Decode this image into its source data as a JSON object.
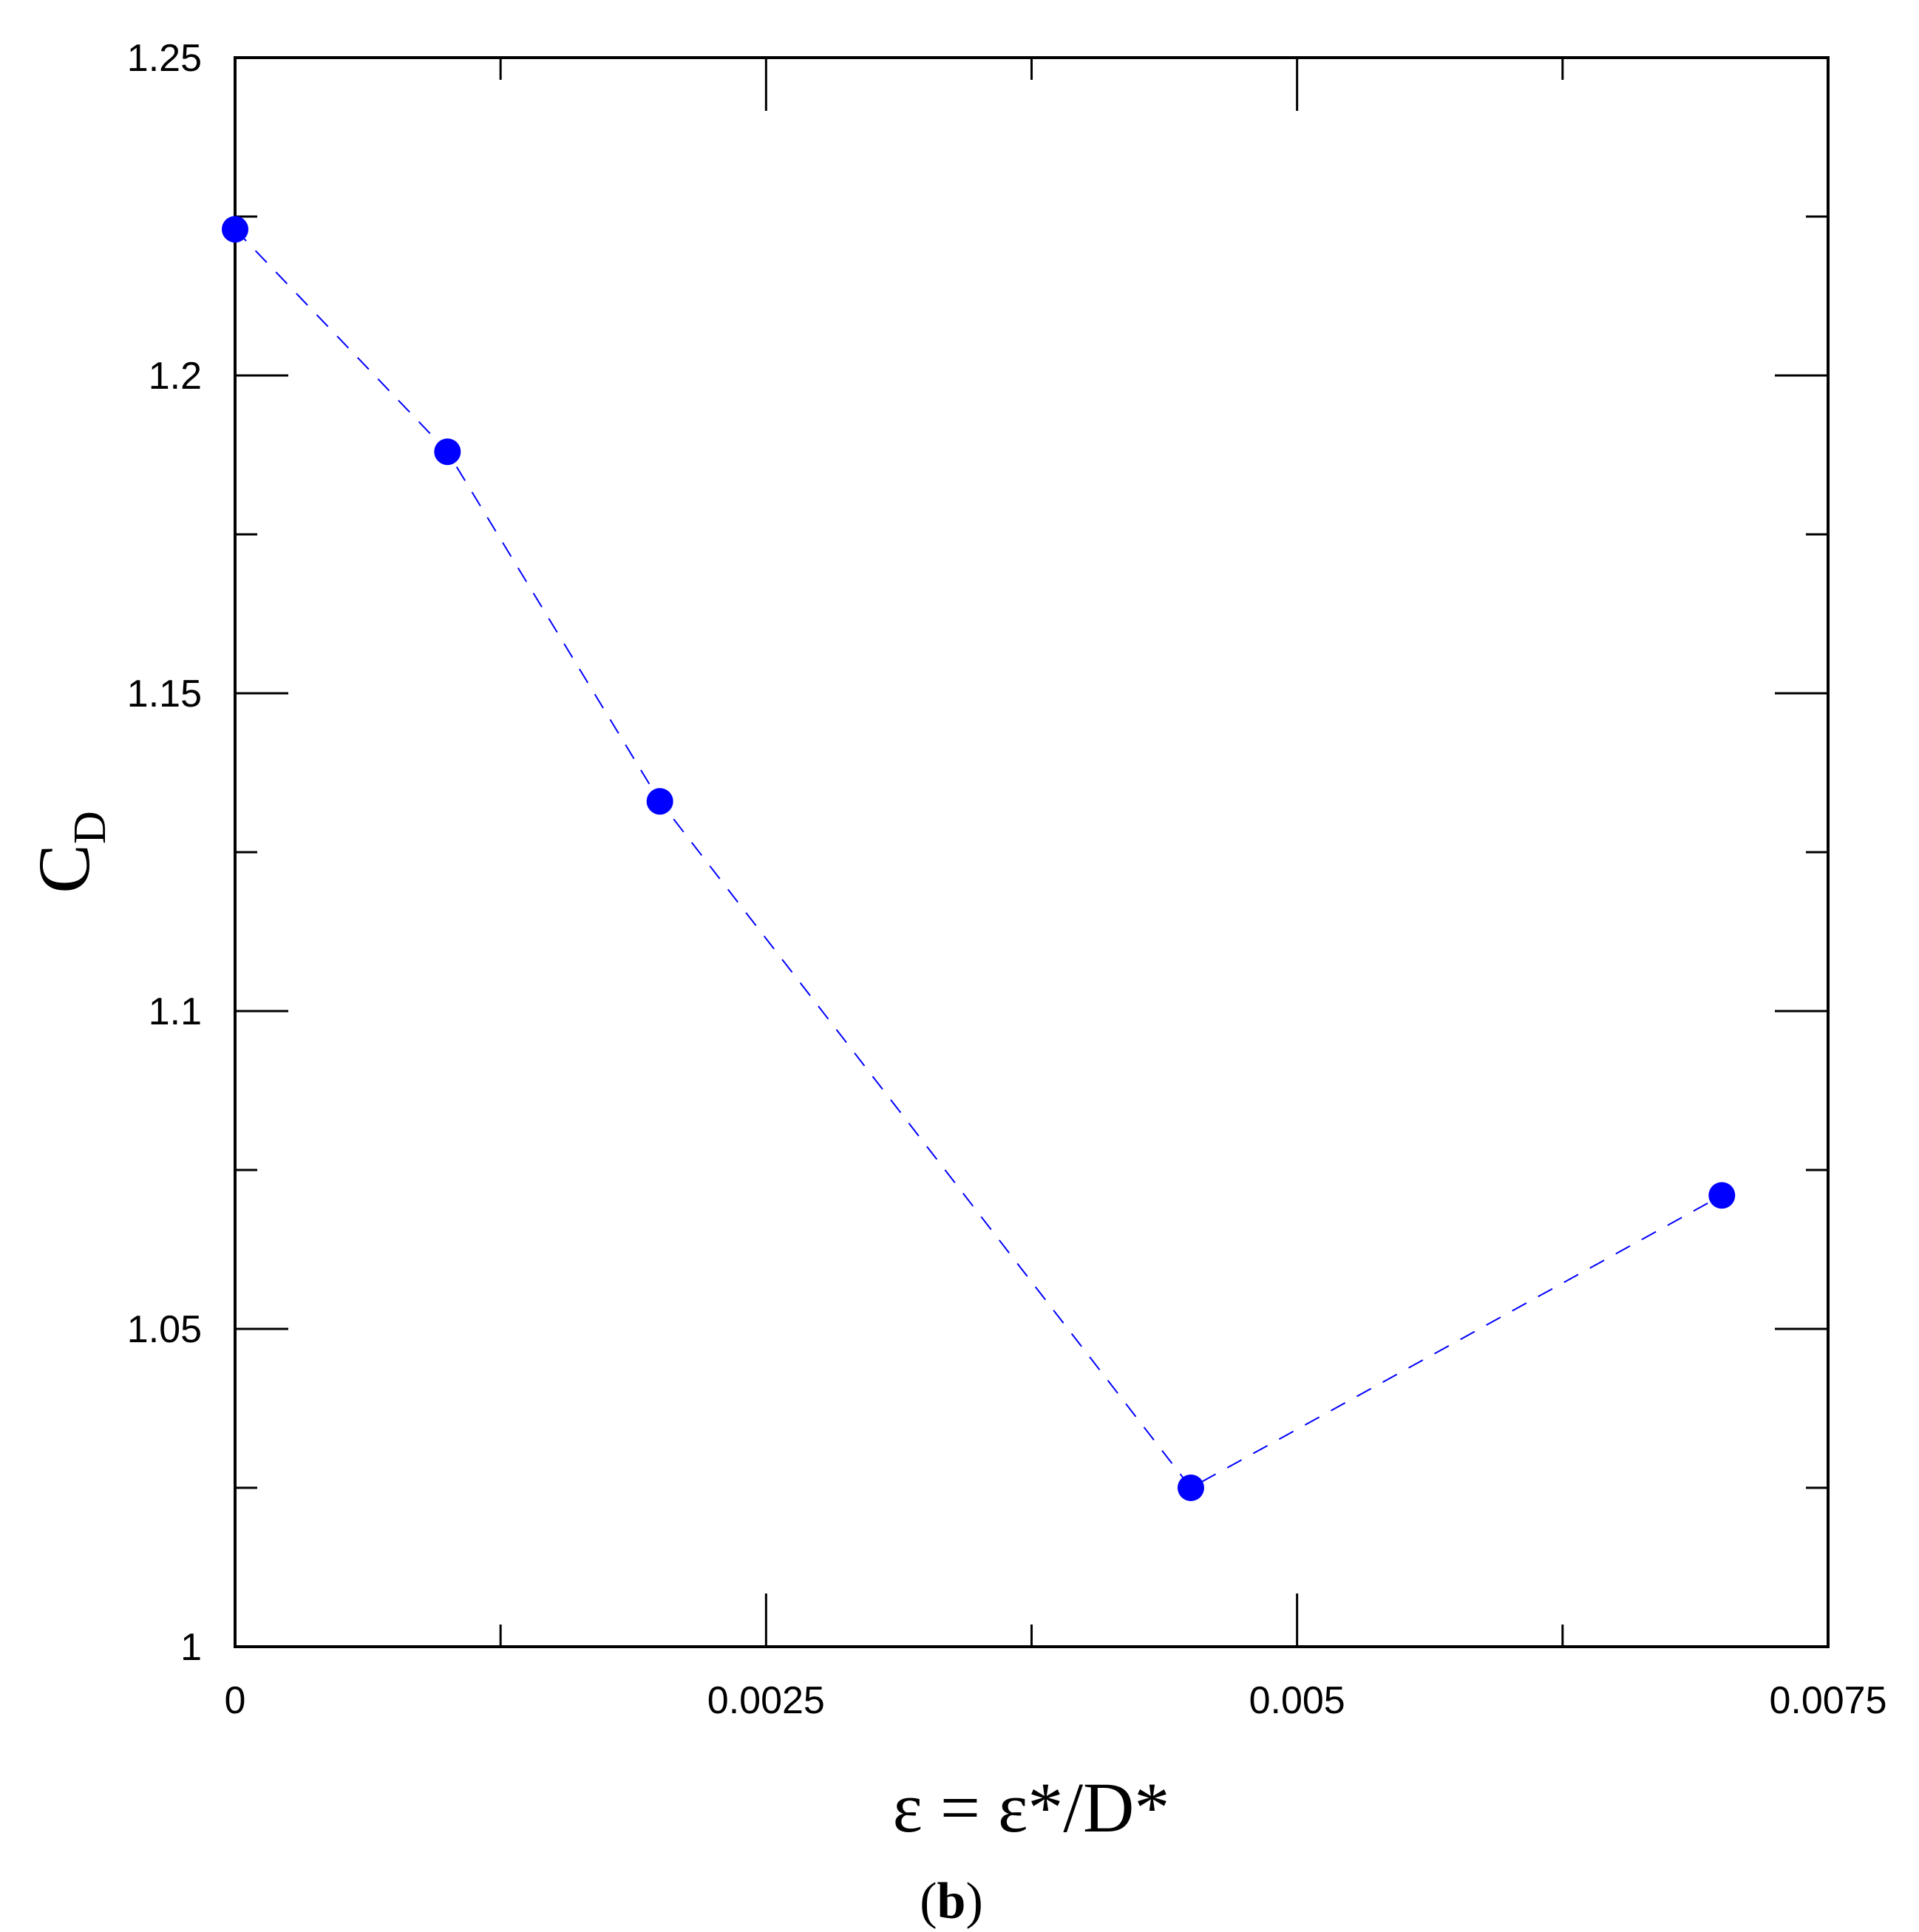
{
  "chart_data": {
    "type": "scatter",
    "xlabel": "ε = ε*/D*",
    "ylabel_main": "C",
    "ylabel_sub": "D",
    "caption_open": "(",
    "caption_bold": "b",
    "caption_close": ")",
    "xlim": [
      0,
      0.0075
    ],
    "ylim": [
      1,
      1.25
    ],
    "xticks": [
      0,
      0.0025,
      0.005,
      0.0075
    ],
    "xtick_labels": [
      "0",
      "0.0025",
      "0.005",
      "0.0075"
    ],
    "xminor_ticks": [
      0.00125,
      0.00375,
      0.00625
    ],
    "yticks": [
      1,
      1.05,
      1.1,
      1.15,
      1.2,
      1.25
    ],
    "ytick_labels": [
      "1",
      "1.05",
      "1.1",
      "1.15",
      "1.2",
      "1.25"
    ],
    "yminor_ticks": [
      1.025,
      1.075,
      1.125,
      1.175,
      1.225
    ],
    "grid": false,
    "line_style": "dashed",
    "series": [
      {
        "x": [
          0,
          0.001,
          0.002,
          0.0045,
          0.007
        ],
        "y": [
          1.223,
          1.188,
          1.133,
          1.025,
          1.071
        ],
        "color": "#0000ff"
      }
    ]
  }
}
